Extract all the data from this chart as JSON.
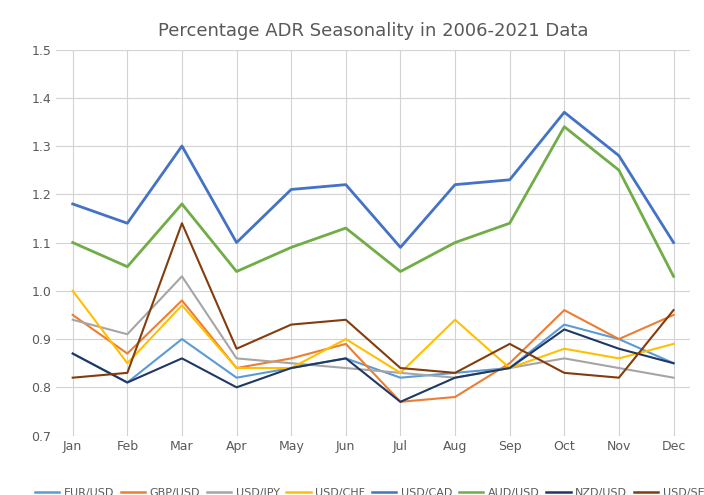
{
  "title": "Percentage ADR Seasonality in 2006-2021 Data",
  "months": [
    "Jan",
    "Feb",
    "Mar",
    "Apr",
    "May",
    "Jun",
    "Jul",
    "Aug",
    "Sep",
    "Oct",
    "Nov",
    "Dec"
  ],
  "series": {
    "EUR/USD": {
      "color": "#5B9BD5",
      "lw": 1.5,
      "values": [
        0.87,
        0.81,
        0.9,
        0.82,
        0.84,
        0.86,
        0.82,
        0.83,
        0.84,
        0.93,
        0.9,
        0.85
      ]
    },
    "GBP/USD": {
      "color": "#ED7D31",
      "lw": 1.5,
      "values": [
        0.95,
        0.87,
        0.98,
        0.84,
        0.86,
        0.89,
        0.77,
        0.78,
        0.85,
        0.96,
        0.9,
        0.95
      ]
    },
    "USD/JPY": {
      "color": "#A5A5A5",
      "lw": 1.5,
      "values": [
        0.94,
        0.91,
        1.03,
        0.86,
        0.85,
        0.84,
        0.83,
        0.82,
        0.84,
        0.86,
        0.84,
        0.82
      ]
    },
    "USD/CHF": {
      "color": "#FFC000",
      "lw": 1.5,
      "values": [
        1.0,
        0.85,
        0.97,
        0.84,
        0.84,
        0.9,
        0.83,
        0.94,
        0.84,
        0.88,
        0.86,
        0.89
      ]
    },
    "USD/CAD": {
      "color": "#4472C4",
      "lw": 2.0,
      "values": [
        1.18,
        1.14,
        1.3,
        1.1,
        1.21,
        1.22,
        1.09,
        1.22,
        1.23,
        1.37,
        1.28,
        1.1
      ]
    },
    "AUD/USD": {
      "color": "#70AD47",
      "lw": 2.0,
      "values": [
        1.1,
        1.05,
        1.18,
        1.04,
        1.09,
        1.13,
        1.04,
        1.1,
        1.14,
        1.34,
        1.25,
        1.03
      ]
    },
    "NZD/USD": {
      "color": "#1F3864",
      "lw": 1.5,
      "values": [
        0.87,
        0.81,
        0.86,
        0.8,
        0.84,
        0.86,
        0.77,
        0.82,
        0.84,
        0.92,
        0.88,
        0.85
      ]
    },
    "USD/SEK": {
      "color": "#843C0C",
      "lw": 1.5,
      "values": [
        0.82,
        0.83,
        1.14,
        0.88,
        0.93,
        0.94,
        0.84,
        0.83,
        0.89,
        0.83,
        0.82,
        0.96
      ]
    }
  },
  "ylim": [
    0.7,
    1.5
  ],
  "yticks": [
    0.7,
    0.8,
    0.9,
    1.0,
    1.1,
    1.2,
    1.3,
    1.4,
    1.5
  ],
  "background_color": "#FFFFFF",
  "grid_color": "#D3D3D3",
  "title_color": "#595959",
  "title_fontsize": 13,
  "tick_fontsize": 9,
  "legend_fontsize": 8
}
